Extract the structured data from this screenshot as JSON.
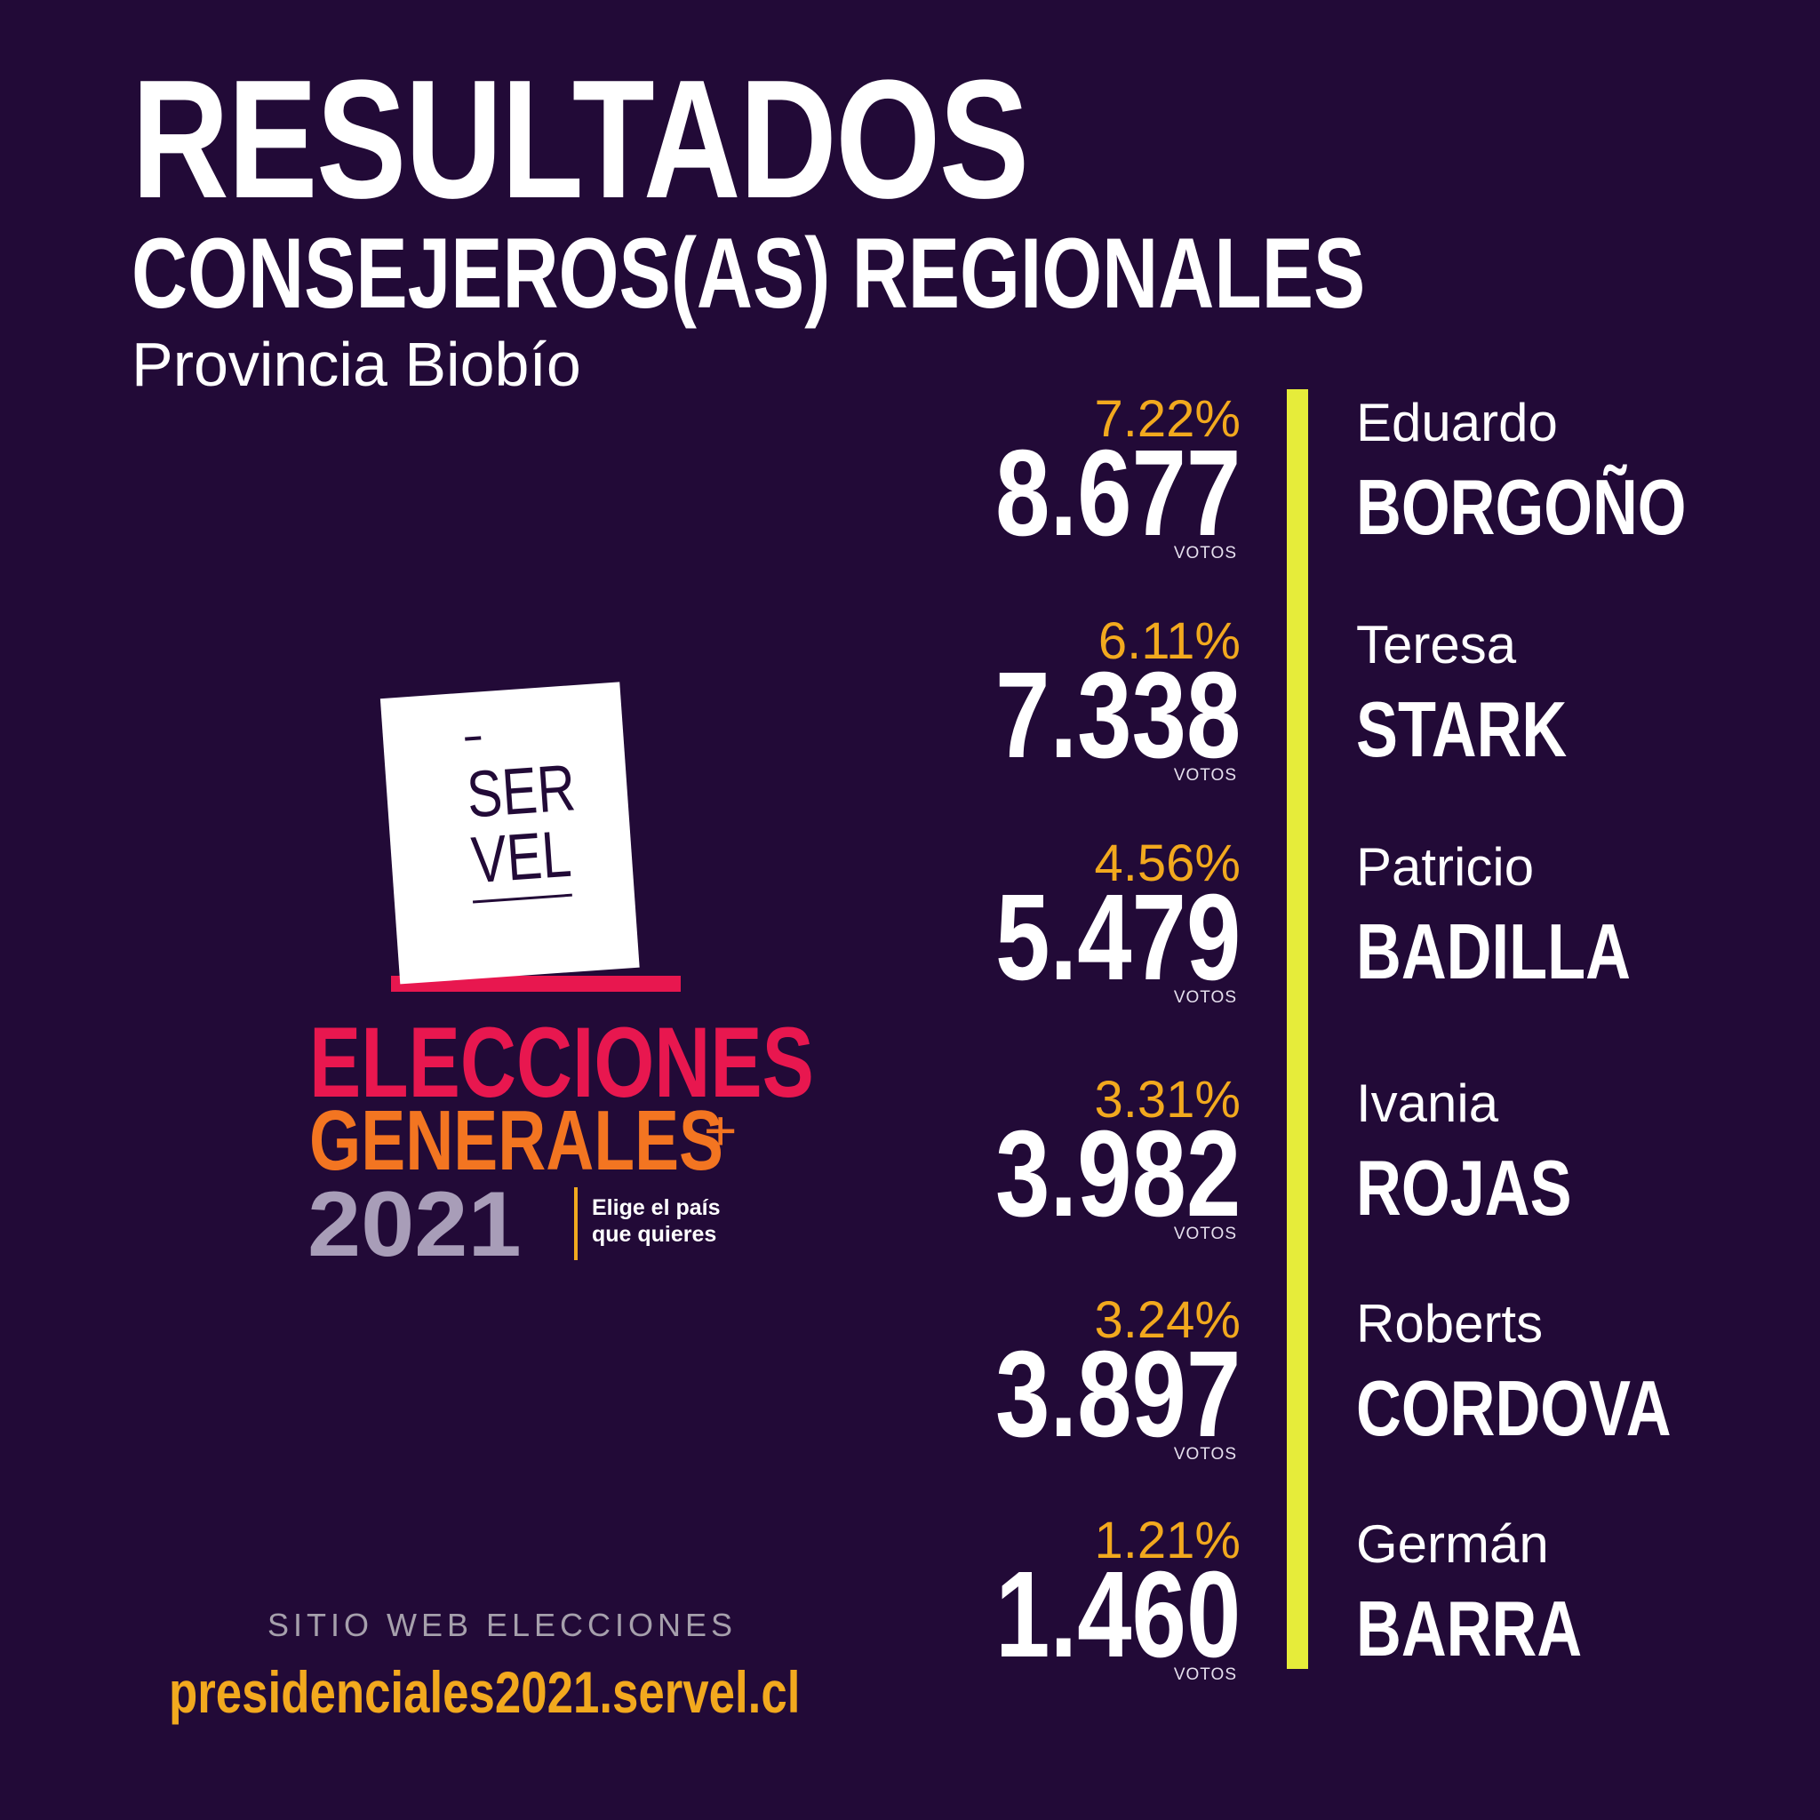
{
  "header": {
    "title": "RESULTADOS",
    "subtitle": "CONSEJEROS(AS) REGIONALES",
    "province": "Provincia Biobío"
  },
  "results": [
    {
      "percent": "7.22%",
      "votes": "8.677",
      "votes_label": "VOTOS",
      "first_name": "Eduardo",
      "last_name": "BORGOÑO"
    },
    {
      "percent": "6.11%",
      "votes": "7.338",
      "votes_label": "VOTOS",
      "first_name": "Teresa",
      "last_name": "STARK"
    },
    {
      "percent": "4.56%",
      "votes": "5.479",
      "votes_label": "VOTOS",
      "first_name": "Patricio",
      "last_name": "BADILLA"
    },
    {
      "percent": "3.31%",
      "votes": "3.982",
      "votes_label": "VOTOS",
      "first_name": "Ivania",
      "last_name": "ROJAS"
    },
    {
      "percent": "3.24%",
      "votes": "3.897",
      "votes_label": "VOTOS",
      "first_name": "Roberts",
      "last_name": "CORDOVA"
    },
    {
      "percent": "1.21%",
      "votes": "1.460",
      "votes_label": "VOTOS",
      "first_name": "Germán",
      "last_name": "BARRA"
    }
  ],
  "logo": {
    "servel_line1": "SER",
    "servel_line2": "VEL",
    "line1": "ELECCIONES",
    "line2": "GENERALES",
    "plus": "+",
    "year": "2021",
    "tagline_1": "Elige el país",
    "tagline_2": "que quieres"
  },
  "footer": {
    "site_label": "SITIO WEB ELECCIONES",
    "site_url": "presidenciales2021.servel.cl"
  },
  "colors": {
    "background": "#220a37",
    "percent": "#f2a91e",
    "divider": "#e6ec3a",
    "elecciones": "#e8174f",
    "generales": "#f37521",
    "year": "#a89db8"
  }
}
